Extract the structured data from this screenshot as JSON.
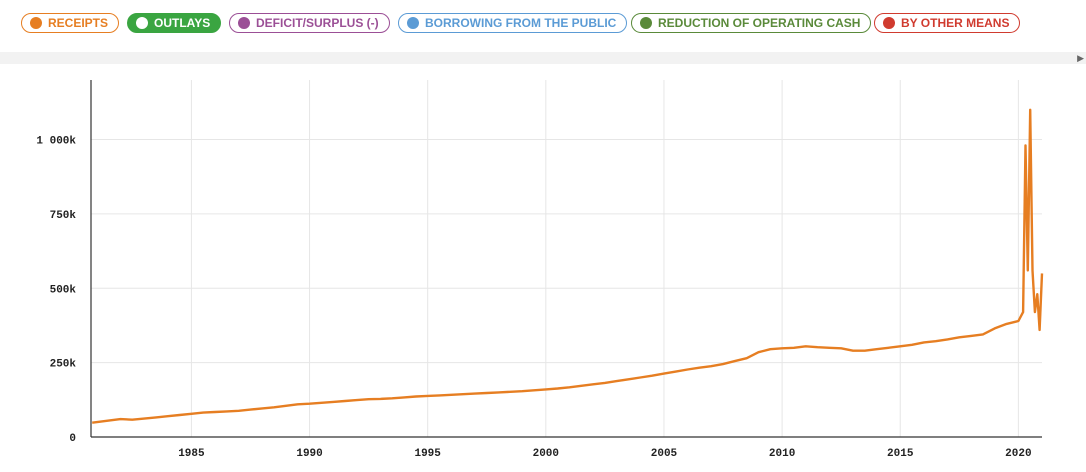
{
  "legend": {
    "items": [
      {
        "label": "RECEIPTS",
        "color": "#e67e22",
        "active": false
      },
      {
        "label": "OUTLAYS",
        "color": "#3aa541",
        "active": true
      },
      {
        "label": "DEFICIT/SURPLUS (-)",
        "color": "#9b4f96",
        "active": false
      },
      {
        "label": "BORROWING FROM THE PUBLIC",
        "color": "#5b9bd5",
        "active": false
      },
      {
        "label": "REDUCTION OF OPERATING CASH",
        "color": "#5a8a3a",
        "active": false
      },
      {
        "label": "BY OTHER MEANS",
        "color": "#d03b2f",
        "active": false
      }
    ]
  },
  "scrollbar": {
    "arrow_icon": "triangle-right-icon"
  },
  "chart_data": {
    "type": "line",
    "title": "",
    "xlabel": "",
    "ylabel": "",
    "xlim": [
      1980.75,
      2021.0
    ],
    "ylim": [
      0,
      1200000
    ],
    "x_ticks": [
      "1985",
      "1990",
      "1995",
      "2000",
      "2005",
      "2010",
      "2015",
      "2020"
    ],
    "y_ticks": [
      "0",
      "250k",
      "500k",
      "750k",
      "1 000k"
    ],
    "grid": true,
    "series": [
      {
        "color": "#e67e22",
        "points": [
          [
            1980.8,
            48000
          ],
          [
            1981.5,
            55000
          ],
          [
            1982.0,
            60000
          ],
          [
            1982.5,
            58000
          ],
          [
            1983.0,
            62000
          ],
          [
            1983.5,
            66000
          ],
          [
            1984.0,
            70000
          ],
          [
            1984.5,
            74000
          ],
          [
            1985.0,
            78000
          ],
          [
            1985.5,
            82000
          ],
          [
            1986.0,
            84000
          ],
          [
            1986.5,
            86000
          ],
          [
            1987.0,
            88000
          ],
          [
            1987.5,
            92000
          ],
          [
            1988.0,
            96000
          ],
          [
            1988.5,
            100000
          ],
          [
            1989.0,
            105000
          ],
          [
            1989.5,
            110000
          ],
          [
            1990.0,
            112000
          ],
          [
            1990.5,
            115000
          ],
          [
            1991.0,
            118000
          ],
          [
            1991.5,
            121000
          ],
          [
            1992.0,
            124000
          ],
          [
            1992.5,
            127000
          ],
          [
            1993.0,
            128000
          ],
          [
            1993.5,
            130000
          ],
          [
            1994.0,
            133000
          ],
          [
            1994.5,
            136000
          ],
          [
            1995.0,
            138000
          ],
          [
            1995.5,
            140000
          ],
          [
            1996.0,
            142000
          ],
          [
            1996.5,
            144000
          ],
          [
            1997.0,
            146000
          ],
          [
            1997.5,
            148000
          ],
          [
            1998.0,
            150000
          ],
          [
            1998.5,
            152000
          ],
          [
            1999.0,
            154000
          ],
          [
            1999.5,
            157000
          ],
          [
            2000.0,
            160000
          ],
          [
            2000.5,
            163000
          ],
          [
            2001.0,
            167000
          ],
          [
            2001.5,
            172000
          ],
          [
            2002.0,
            177000
          ],
          [
            2002.5,
            182000
          ],
          [
            2003.0,
            188000
          ],
          [
            2003.5,
            194000
          ],
          [
            2004.0,
            200000
          ],
          [
            2004.5,
            206000
          ],
          [
            2005.0,
            213000
          ],
          [
            2005.5,
            220000
          ],
          [
            2006.0,
            227000
          ],
          [
            2006.5,
            233000
          ],
          [
            2007.0,
            238000
          ],
          [
            2007.5,
            245000
          ],
          [
            2008.0,
            255000
          ],
          [
            2008.5,
            265000
          ],
          [
            2009.0,
            285000
          ],
          [
            2009.5,
            295000
          ],
          [
            2010.0,
            298000
          ],
          [
            2010.5,
            300000
          ],
          [
            2011.0,
            305000
          ],
          [
            2011.5,
            302000
          ],
          [
            2012.0,
            300000
          ],
          [
            2012.5,
            298000
          ],
          [
            2013.0,
            290000
          ],
          [
            2013.5,
            290000
          ],
          [
            2014.0,
            295000
          ],
          [
            2014.5,
            300000
          ],
          [
            2015.0,
            305000
          ],
          [
            2015.5,
            310000
          ],
          [
            2016.0,
            318000
          ],
          [
            2016.5,
            322000
          ],
          [
            2017.0,
            328000
          ],
          [
            2017.5,
            335000
          ],
          [
            2018.0,
            340000
          ],
          [
            2018.5,
            345000
          ],
          [
            2019.0,
            365000
          ],
          [
            2019.5,
            380000
          ],
          [
            2020.0,
            390000
          ],
          [
            2020.2,
            420000
          ],
          [
            2020.3,
            980000
          ],
          [
            2020.4,
            560000
          ],
          [
            2020.5,
            1100000
          ],
          [
            2020.6,
            560000
          ],
          [
            2020.7,
            420000
          ],
          [
            2020.8,
            480000
          ],
          [
            2020.9,
            360000
          ],
          [
            2021.0,
            550000
          ]
        ]
      }
    ]
  }
}
